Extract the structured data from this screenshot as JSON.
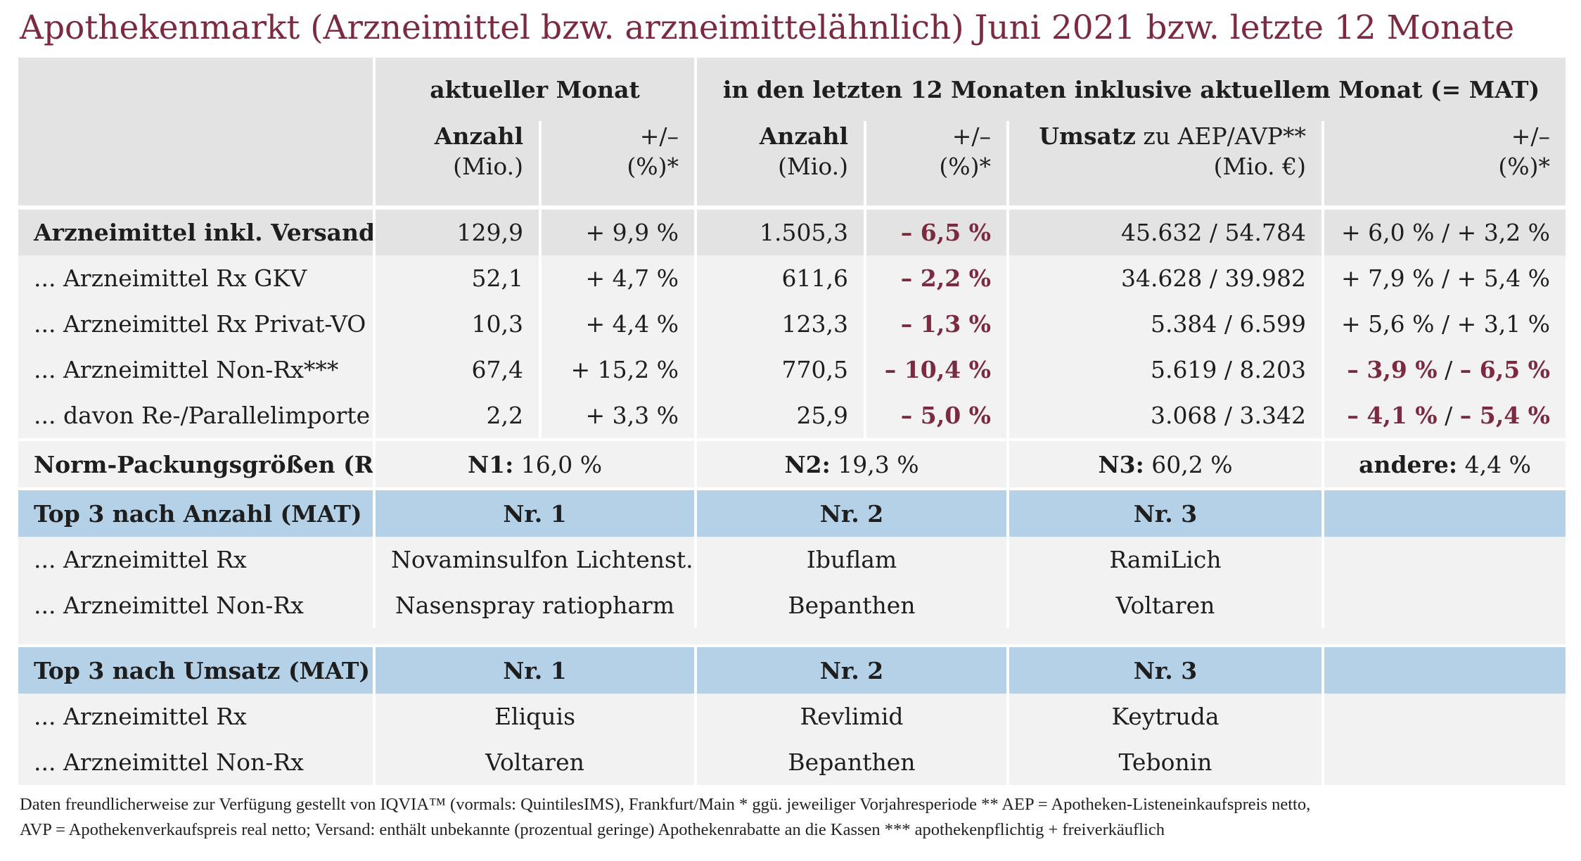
{
  "title": "Apothekenmarkt (Arzneimittel bzw. arzneimittelähnlich) Juni 2021 bzw. letzte 12 Monate",
  "header": {
    "group_current": "aktueller Monat",
    "group_mat": "in den letzten 12 Monaten inklusive aktuellem Monat (= MAT)",
    "anzahl": "Anzahl",
    "mio": "(Mio.)",
    "plusminus": "+/–",
    "pct": "(%)*",
    "umsatz_bold": "Umsatz",
    "umsatz_rest": " zu AEP/AVP**",
    "mio_eur": "(Mio. €)"
  },
  "rows": [
    {
      "label": "Arzneimittel inkl. Versand",
      "cur_count": "129,9",
      "cur_pct": "+ 9,9 %",
      "mat_count": "1.505,3",
      "mat_pct": "– 6,5 %",
      "revenue": "45.632 / 54.784",
      "rev_pct_a": "+ 6,0 %",
      "rev_pct_b": "+ 3,2 %"
    },
    {
      "label": "... Arzneimittel Rx GKV",
      "cur_count": "52,1",
      "cur_pct": "+ 4,7 %",
      "mat_count": "611,6",
      "mat_pct": "– 2,2 %",
      "revenue": "34.628 / 39.982",
      "rev_pct_a": "+ 7,9 %",
      "rev_pct_b": "+ 5,4 %"
    },
    {
      "label": "... Arzneimittel Rx Privat-VO",
      "cur_count": "10,3",
      "cur_pct": "+ 4,4 %",
      "mat_count": "123,3",
      "mat_pct": "– 1,3 %",
      "revenue": "5.384 / 6.599",
      "rev_pct_a": "+ 5,6 %",
      "rev_pct_b": "+ 3,1 %"
    },
    {
      "label": "... Arzneimittel Non-Rx***",
      "cur_count": "67,4",
      "cur_pct": "+ 15,2 %",
      "mat_count": "770,5",
      "mat_pct": "– 10,4 %",
      "revenue": "5.619 / 8.203",
      "rev_pct_a": "– 3,9 %",
      "rev_pct_b": "– 6,5 %"
    },
    {
      "label": "... davon Re-/Parallelimporte",
      "cur_count": "2,2",
      "cur_pct": "+ 3,3 %",
      "mat_count": "25,9",
      "mat_pct": "– 5,0 %",
      "revenue": "3.068 / 3.342",
      "rev_pct_a": "– 4,1 %",
      "rev_pct_b": "– 5,4 %"
    }
  ],
  "norm": {
    "label": "Norm-Packungsgrößen (Rx)",
    "n1_label": "N1:",
    "n1_value": " 16,0 %",
    "n2_label": "N2:",
    "n2_value": " 19,3 %",
    "n3_label": "N3:",
    "n3_value": " 60,2 %",
    "other_label": "andere:",
    "other_value": " 4,4 %"
  },
  "top_count": {
    "title": "Top 3 nach Anzahl (MAT)",
    "nr1": "Nr. 1",
    "nr2": "Nr. 2",
    "nr3": "Nr. 3",
    "rows": [
      {
        "label": "... Arzneimittel Rx",
        "p1": "Novaminsulfon Lichtenst.",
        "p2": "Ibuflam",
        "p3": "RamiLich"
      },
      {
        "label": "... Arzneimittel Non-Rx",
        "p1": "Nasenspray ratiopharm",
        "p2": "Bepanthen",
        "p3": "Voltaren"
      }
    ]
  },
  "top_revenue": {
    "title": "Top 3 nach Umsatz (MAT)",
    "nr1": "Nr. 1",
    "nr2": "Nr. 2",
    "nr3": "Nr. 3",
    "rows": [
      {
        "label": "... Arzneimittel Rx",
        "p1": "Eliquis",
        "p2": "Revlimid",
        "p3": "Keytruda"
      },
      {
        "label": "... Arzneimittel Non-Rx",
        "p1": "Voltaren",
        "p2": "Bepanthen",
        "p3": "Tebonin"
      }
    ]
  },
  "footnote": {
    "line1": "Daten freundlicherweise zur Verfügung gestellt von IQVIA™ (vormals: QuintilesIMS), Frankfurt/Main  * ggü. jeweiliger Vorjahresperiode  ** AEP = Apotheken-Listeneinkaufspreis netto,",
    "line2": "AVP = Apothekenverkaufspreis real netto; Versand: enthält unbekannte (prozentual geringe) Apothekenrabatte an die Kassen   *** apothekenpflichtig + freiverkäuflich"
  },
  "colors": {
    "title": "#7b2a3f",
    "negative": "#7b2a3f",
    "header_bg": "#e3e3e3",
    "row_bg": "#f2f2f2",
    "top_bg": "#b5d1e7"
  }
}
